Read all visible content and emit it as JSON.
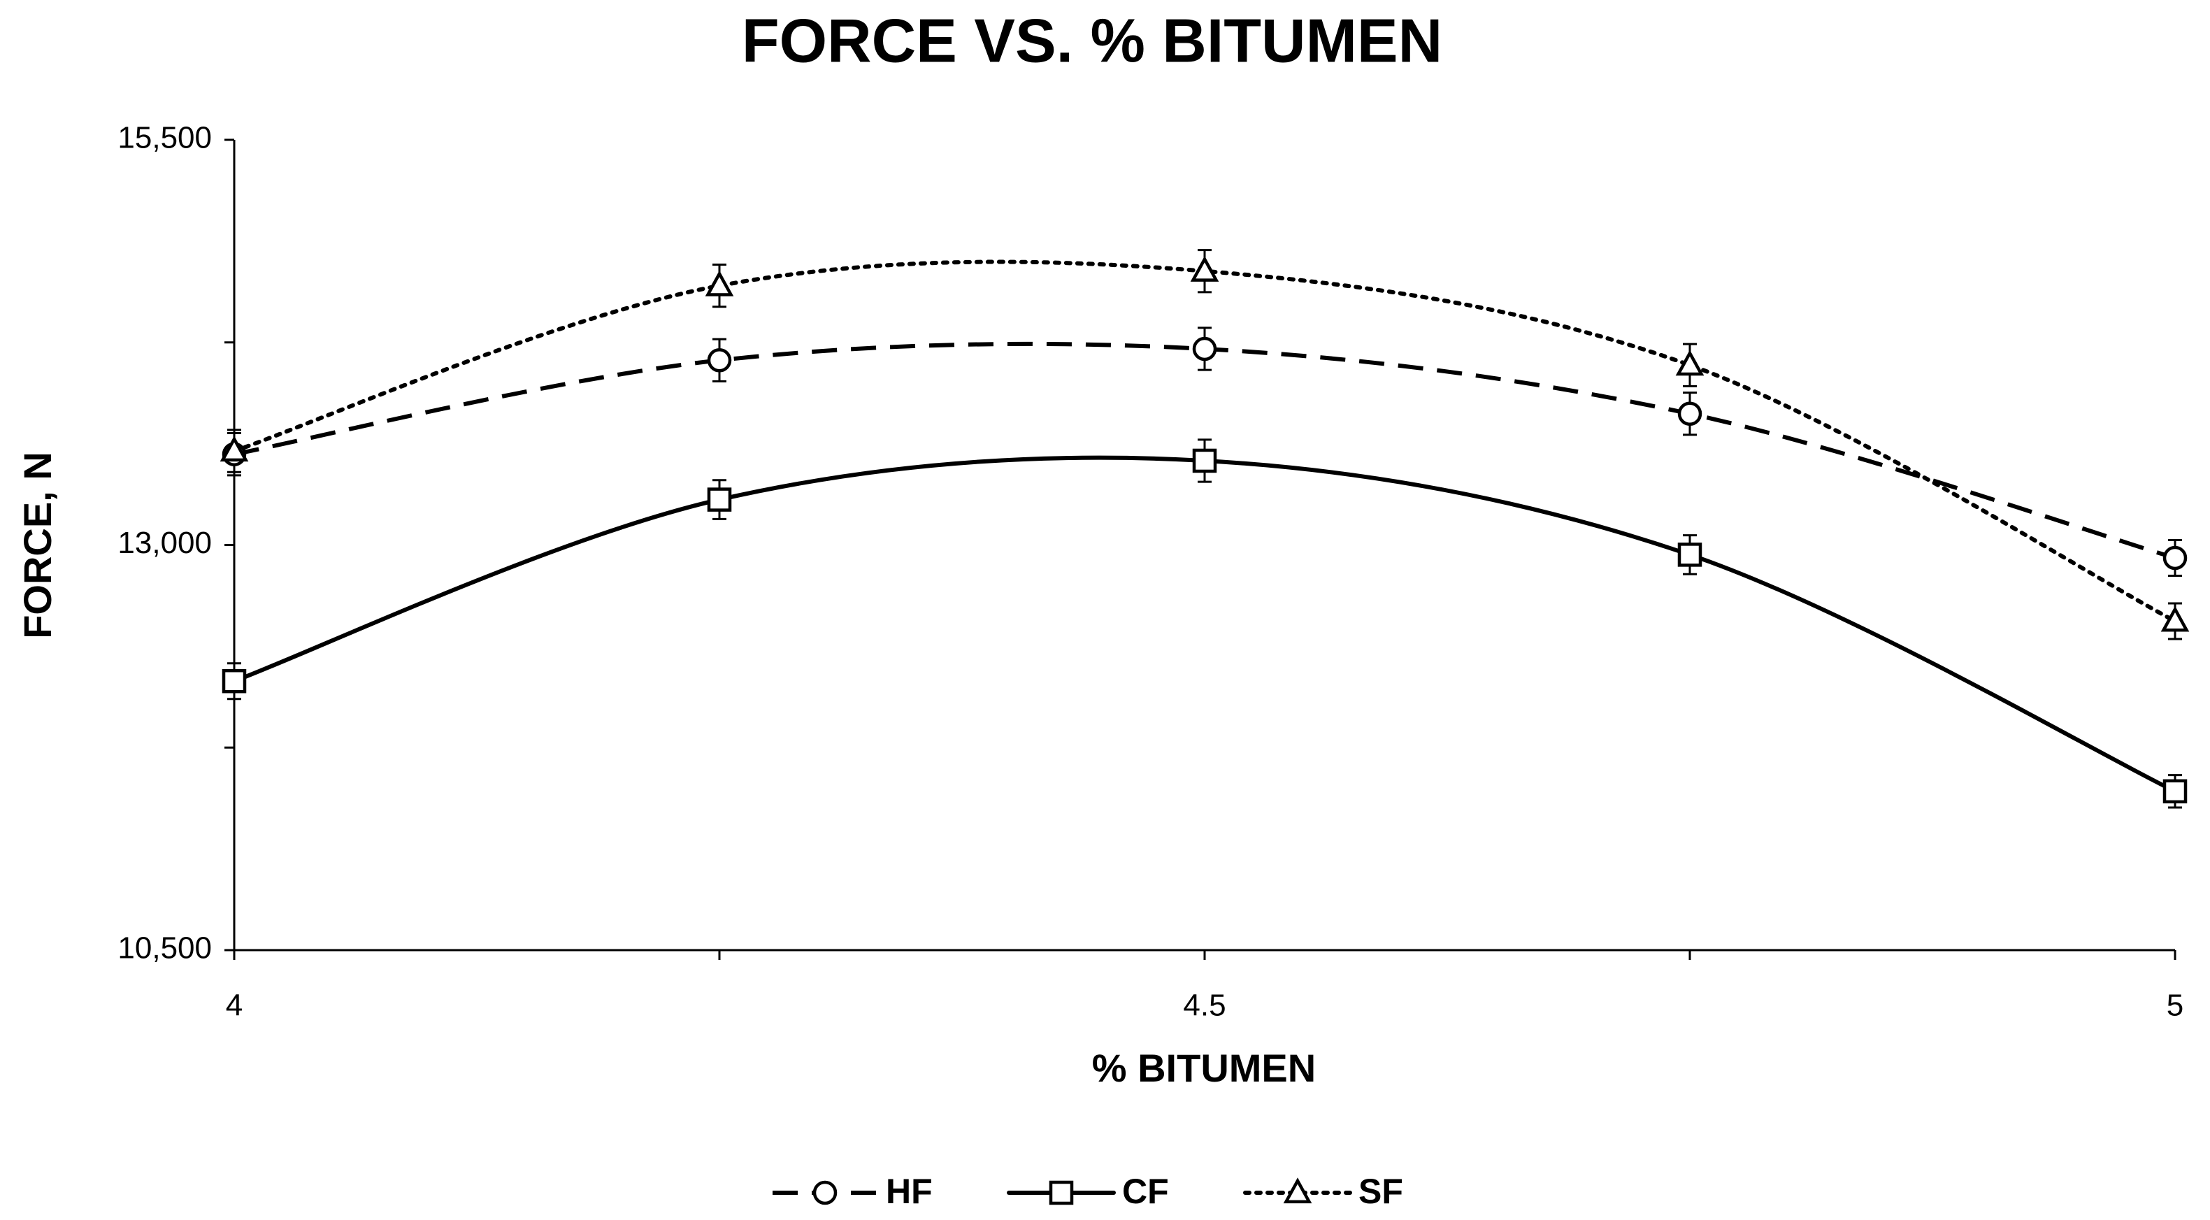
{
  "chart_data": {
    "type": "line",
    "title": "FORCE VS. % BITUMEN",
    "x_label": "% BITUMEN",
    "y_label": "FORCE, N",
    "x": [
      4,
      4.25,
      4.5,
      4.75,
      5
    ],
    "xlim": [
      4,
      5
    ],
    "xticks": [
      4,
      4.5,
      5
    ],
    "ylim": [
      10500,
      15500
    ],
    "yticks": [
      {
        "value": 10500,
        "label": "10,500"
      },
      {
        "value": 13000,
        "label": "13,000"
      },
      {
        "value": 15500,
        "label": "15,500"
      }
    ],
    "smooth": true,
    "series": [
      {
        "name": "HF",
        "color": "#000000",
        "style": "dashed",
        "marker": "circle",
        "values": [
          13560,
          14140,
          14210,
          13810,
          12920
        ],
        "errors": [
          130,
          130,
          130,
          130,
          110
        ]
      },
      {
        "name": "CF",
        "color": "#000000",
        "style": "solid",
        "marker": "square",
        "values": [
          12160,
          13280,
          13520,
          12940,
          11480
        ],
        "errors": [
          110,
          120,
          130,
          120,
          100
        ]
      },
      {
        "name": "SF",
        "color": "#000000",
        "style": "dotted",
        "marker": "triangle",
        "values": [
          13580,
          14600,
          14690,
          14110,
          12530
        ],
        "errors": [
          130,
          130,
          130,
          130,
          110
        ]
      }
    ]
  }
}
